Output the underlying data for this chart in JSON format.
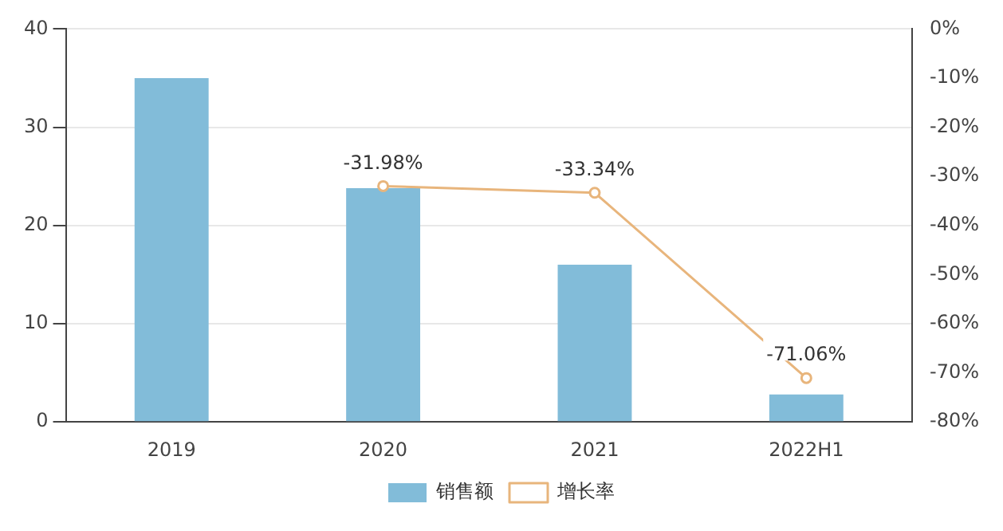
{
  "chart_data": {
    "type": "bar",
    "categories": [
      "2019",
      "2020",
      "2021",
      "2022H1"
    ],
    "series": [
      {
        "name": "销售额",
        "type": "bar",
        "color": "#82bcd9",
        "values": [
          35,
          23.8,
          16,
          2.8
        ]
      },
      {
        "name": "增长率",
        "type": "line",
        "axis": "y2",
        "color": "#e8b57c",
        "marker": "circle",
        "values": [
          null,
          -31.98,
          -33.34,
          -71.06
        ],
        "value_labels": [
          null,
          "-31.98%",
          "-33.34%",
          "-71.06%"
        ]
      }
    ],
    "ylim": [
      0,
      40
    ],
    "yticks": [
      0,
      10,
      20,
      30,
      40
    ],
    "y2lim": [
      -80,
      0
    ],
    "y2ticks": [
      {
        "value": -80,
        "label": "-80%"
      },
      {
        "value": -70,
        "label": "-70%"
      },
      {
        "value": -60,
        "label": "-60%"
      },
      {
        "value": -50,
        "label": "-50%"
      },
      {
        "value": -40,
        "label": "-40%"
      },
      {
        "value": -30,
        "label": "-30%"
      },
      {
        "value": -20,
        "label": "-20%"
      },
      {
        "value": -10,
        "label": "-10%"
      },
      {
        "value": 0,
        "label": "0%"
      }
    ],
    "grid": "y",
    "legend": "bottom"
  }
}
